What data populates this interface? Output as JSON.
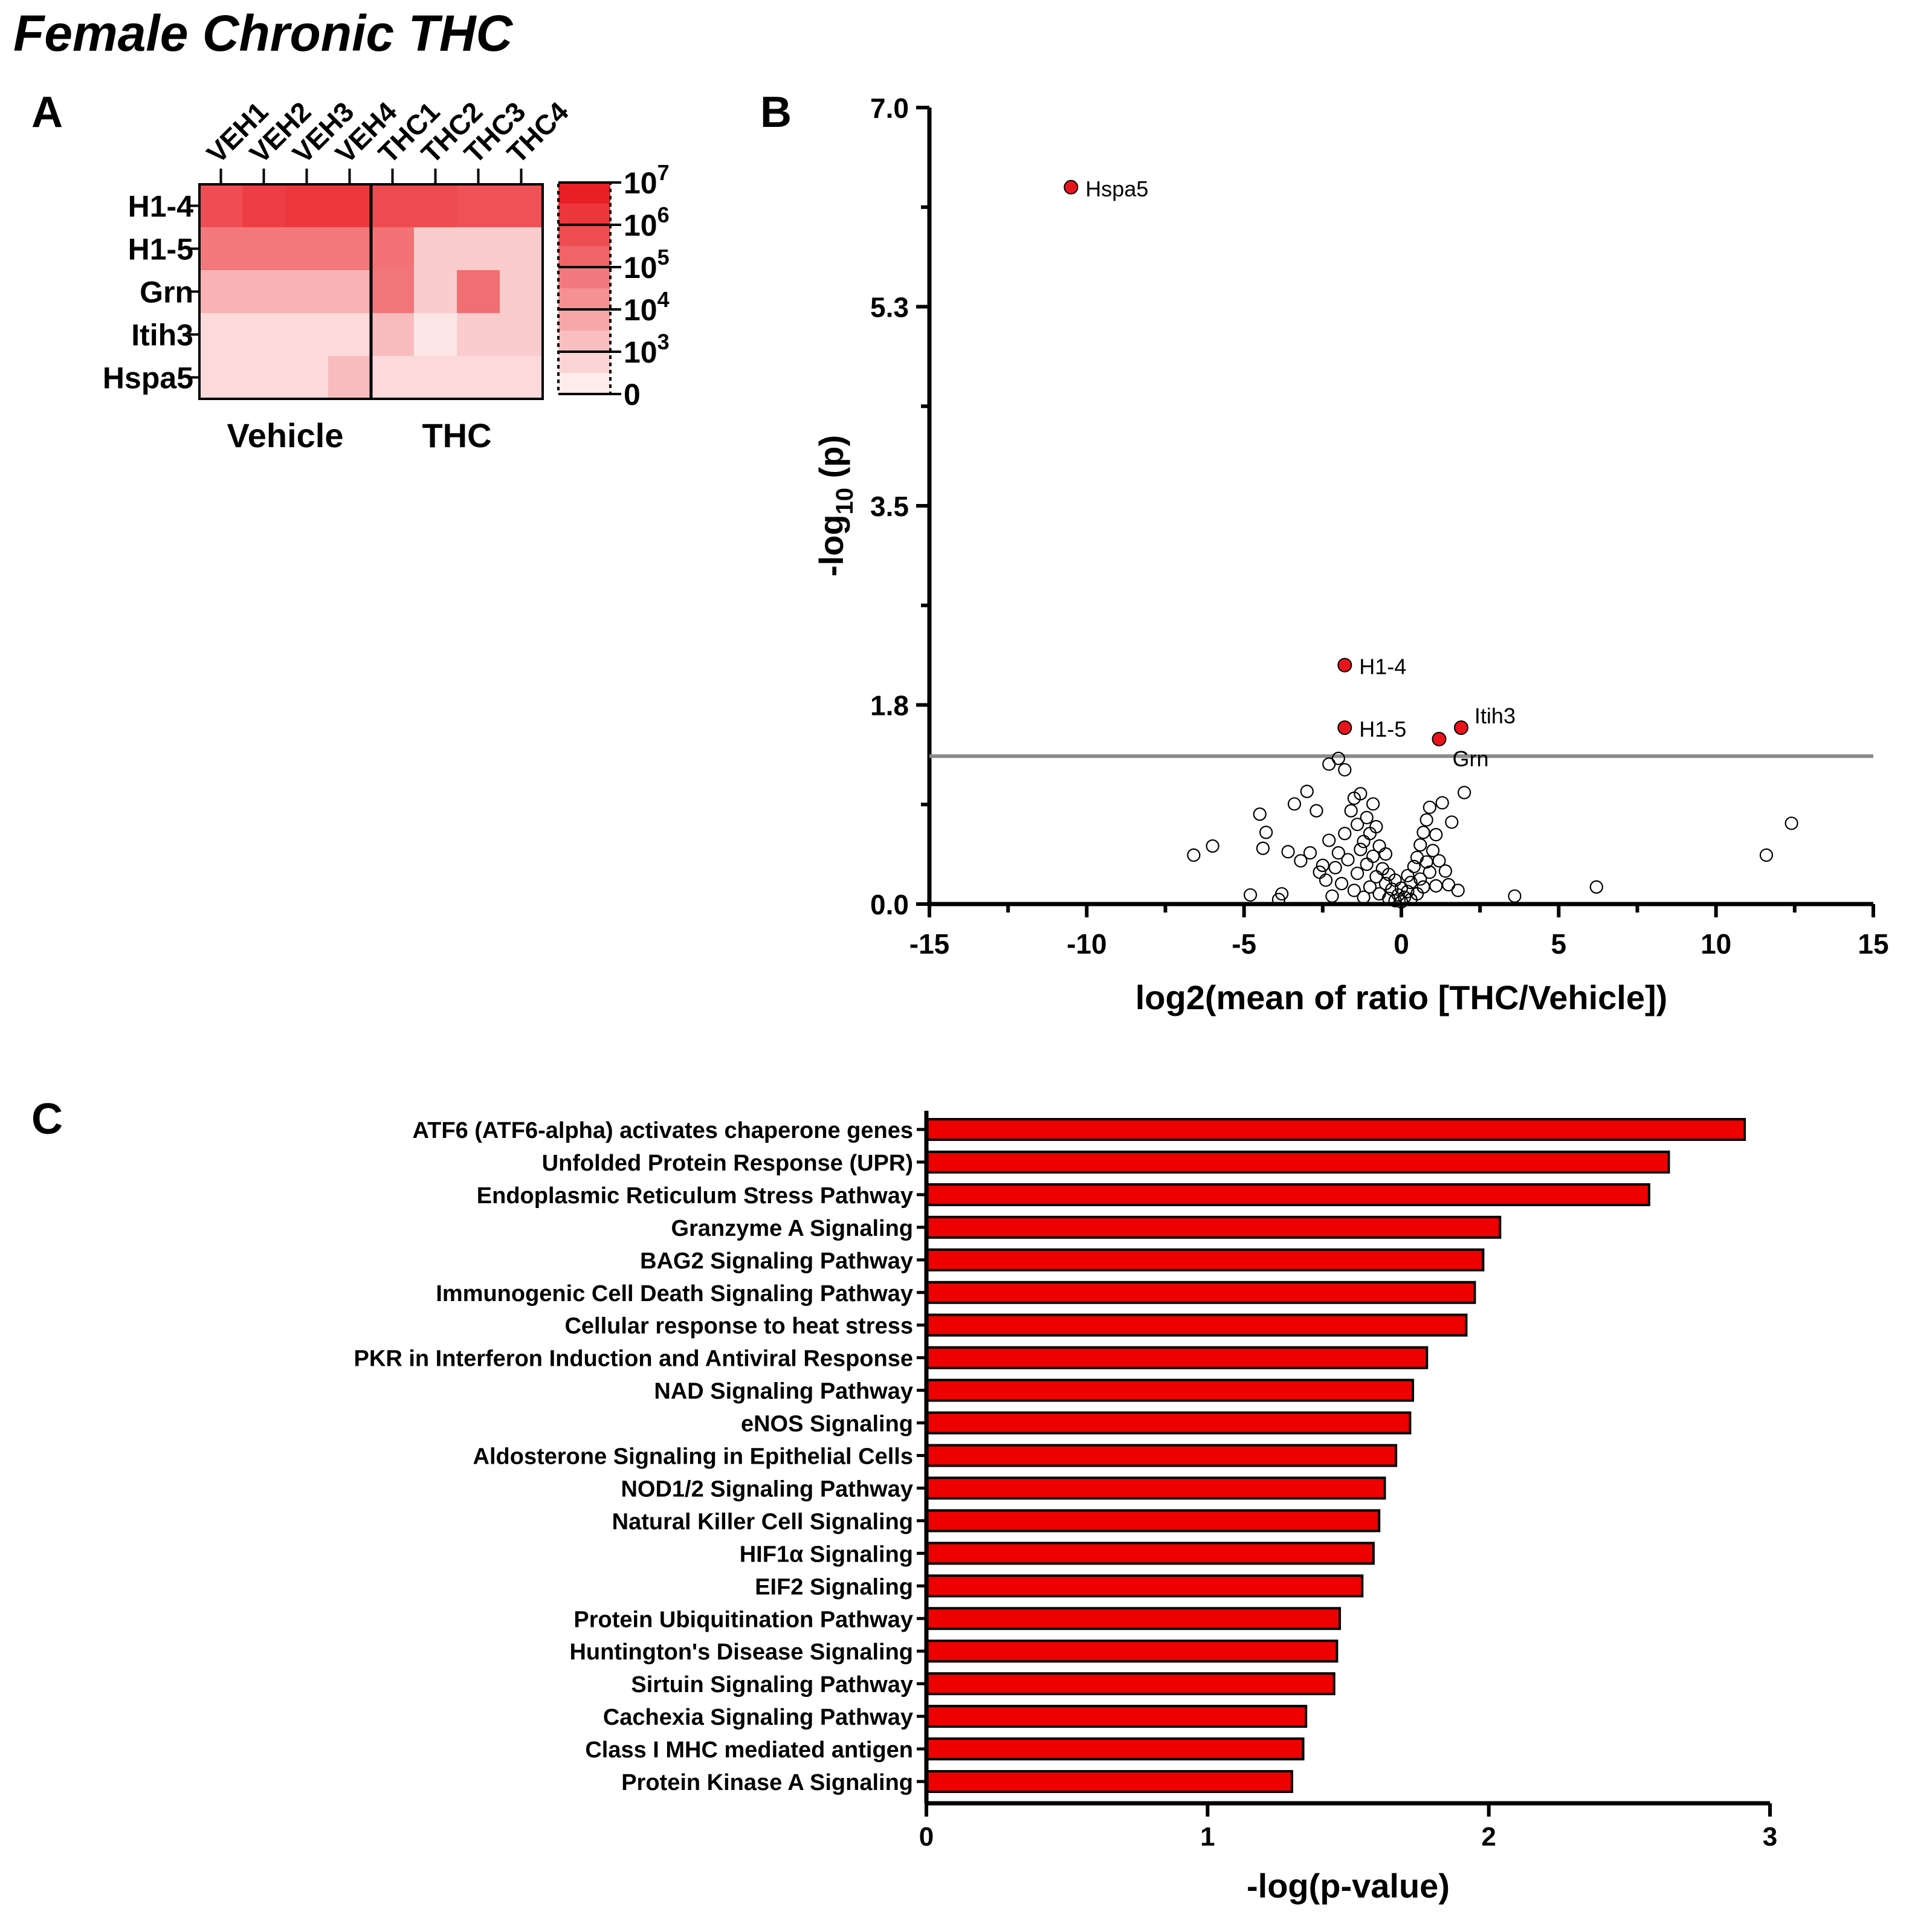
{
  "figure_title": "Female Chronic THC",
  "panel_labels": {
    "a": "A",
    "b": "B",
    "c": "C"
  },
  "colors": {
    "accent": "#e8141b",
    "bar": "#ee0000",
    "ref_line": "#8a8a8a",
    "axis": "#000000"
  },
  "chart_data": [
    {
      "type": "heatmap",
      "panel": "A",
      "columns": [
        "VEH1",
        "VEH2",
        "VEH3",
        "VEH4",
        "THC1",
        "THC2",
        "THC3",
        "THC4"
      ],
      "rows": [
        "H1-4",
        "H1-5",
        "Grn",
        "Itih3",
        "Hspa5"
      ],
      "groups": [
        {
          "label": "Vehicle",
          "columns": [
            "VEH1",
            "VEH2",
            "VEH3",
            "VEH4"
          ]
        },
        {
          "label": "THC",
          "columns": [
            "THC1",
            "THC2",
            "THC3",
            "THC4"
          ]
        }
      ],
      "scale_base": 10,
      "values_log10": [
        [
          5.2,
          5.7,
          5.9,
          5.9,
          5.3,
          5.3,
          5.1,
          5.1
        ],
        [
          3.9,
          3.9,
          3.9,
          3.9,
          4.1,
          1.3,
          1.3,
          1.3
        ],
        [
          2.1,
          2.1,
          2.1,
          2.1,
          4.0,
          1.3,
          4.2,
          1.3
        ],
        [
          0.9,
          0.9,
          0.9,
          0.9,
          1.8,
          0.5,
          1.3,
          1.3
        ],
        [
          0.9,
          0.9,
          0.9,
          1.8,
          0.9,
          0.9,
          0.9,
          0.9
        ]
      ],
      "colorbar": {
        "ticks": [
          {
            "base": "10",
            "exp": "7"
          },
          {
            "base": "10",
            "exp": "6"
          },
          {
            "base": "10",
            "exp": "5"
          },
          {
            "base": "10",
            "exp": "4"
          },
          {
            "base": "10",
            "exp": "3"
          },
          {
            "base": "0",
            "exp": ""
          }
        ],
        "range_log10": [
          0,
          7
        ]
      }
    },
    {
      "type": "scatter",
      "panel": "B",
      "title": "",
      "xlabel": "log2(mean of ratio [THC/Vehicle])",
      "ylabel_parts": {
        "pre": "-log",
        "sub": "10",
        "post": " (p)"
      },
      "xlim": [
        -15,
        15
      ],
      "ylim": [
        0,
        7
      ],
      "xticks": [
        -15,
        -10,
        -5,
        0,
        5,
        10,
        15
      ],
      "xtick_labels": [
        "-15",
        "-10",
        "-5",
        "0",
        "5",
        "10",
        "15"
      ],
      "yticks": [
        0,
        1.75,
        3.5,
        5.25,
        7
      ],
      "ytick_labels": [
        "0.0",
        "1.8",
        "3.5",
        "5.3",
        "7.0"
      ],
      "significance_threshold": 1.3,
      "highlighted": [
        {
          "gene": "Hspa5",
          "x": -10.5,
          "y": 6.3
        },
        {
          "gene": "H1-4",
          "x": -1.8,
          "y": 2.1
        },
        {
          "gene": "H1-5",
          "x": -1.8,
          "y": 1.55
        },
        {
          "gene": "Itih3",
          "x": 1.9,
          "y": 1.55
        },
        {
          "gene": "Grn",
          "x": 1.2,
          "y": 1.45
        }
      ],
      "points": [
        {
          "x": -6.6,
          "y": 0.43
        },
        {
          "x": -6.0,
          "y": 0.51
        },
        {
          "x": -4.8,
          "y": 0.08
        },
        {
          "x": -4.5,
          "y": 0.79
        },
        {
          "x": -4.4,
          "y": 0.49
        },
        {
          "x": -4.3,
          "y": 0.63
        },
        {
          "x": -3.9,
          "y": 0.04
        },
        {
          "x": -3.8,
          "y": 0.09
        },
        {
          "x": -3.6,
          "y": 0.46
        },
        {
          "x": -3.4,
          "y": 0.88
        },
        {
          "x": -3.2,
          "y": 0.38
        },
        {
          "x": -3.0,
          "y": 0.99
        },
        {
          "x": -2.9,
          "y": 0.45
        },
        {
          "x": -2.7,
          "y": 0.82
        },
        {
          "x": -2.6,
          "y": 0.28
        },
        {
          "x": -2.5,
          "y": 0.34
        },
        {
          "x": -2.4,
          "y": 0.21
        },
        {
          "x": -2.3,
          "y": 0.56
        },
        {
          "x": -2.3,
          "y": 1.23
        },
        {
          "x": -2.2,
          "y": 0.07
        },
        {
          "x": -2.1,
          "y": 0.32
        },
        {
          "x": -2.0,
          "y": 0.45
        },
        {
          "x": -2.0,
          "y": 1.28
        },
        {
          "x": -1.9,
          "y": 0.18
        },
        {
          "x": -1.8,
          "y": 0.62
        },
        {
          "x": -1.8,
          "y": 1.18
        },
        {
          "x": -1.7,
          "y": 0.39
        },
        {
          "x": -1.6,
          "y": 0.82
        },
        {
          "x": -1.5,
          "y": 0.12
        },
        {
          "x": -1.5,
          "y": 0.93
        },
        {
          "x": -1.4,
          "y": 0.27
        },
        {
          "x": -1.4,
          "y": 0.7
        },
        {
          "x": -1.3,
          "y": 0.48
        },
        {
          "x": -1.3,
          "y": 0.97
        },
        {
          "x": -1.2,
          "y": 0.06
        },
        {
          "x": -1.2,
          "y": 0.55
        },
        {
          "x": -1.1,
          "y": 0.35
        },
        {
          "x": -1.1,
          "y": 0.76
        },
        {
          "x": -1.0,
          "y": 0.15
        },
        {
          "x": -1.0,
          "y": 0.62
        },
        {
          "x": -0.9,
          "y": 0.42
        },
        {
          "x": -0.9,
          "y": 0.88
        },
        {
          "x": -0.8,
          "y": 0.24
        },
        {
          "x": -0.8,
          "y": 0.68
        },
        {
          "x": -0.7,
          "y": 0.09
        },
        {
          "x": -0.7,
          "y": 0.51
        },
        {
          "x": -0.6,
          "y": 0.31
        },
        {
          "x": -0.5,
          "y": 0.18
        },
        {
          "x": -0.5,
          "y": 0.44
        },
        {
          "x": -0.4,
          "y": 0.05
        },
        {
          "x": -0.4,
          "y": 0.26
        },
        {
          "x": -0.3,
          "y": 0.13
        },
        {
          "x": -0.2,
          "y": 0.03
        },
        {
          "x": -0.2,
          "y": 0.21
        },
        {
          "x": -0.1,
          "y": 0.08
        },
        {
          "x": 0.0,
          "y": 0.02
        },
        {
          "x": 0.0,
          "y": 0.14
        },
        {
          "x": 0.1,
          "y": 0.06
        },
        {
          "x": 0.2,
          "y": 0.11
        },
        {
          "x": 0.2,
          "y": 0.25
        },
        {
          "x": 0.3,
          "y": 0.04
        },
        {
          "x": 0.3,
          "y": 0.19
        },
        {
          "x": 0.4,
          "y": 0.33
        },
        {
          "x": 0.5,
          "y": 0.09
        },
        {
          "x": 0.5,
          "y": 0.41
        },
        {
          "x": 0.6,
          "y": 0.22
        },
        {
          "x": 0.6,
          "y": 0.52
        },
        {
          "x": 0.7,
          "y": 0.15
        },
        {
          "x": 0.7,
          "y": 0.63
        },
        {
          "x": 0.8,
          "y": 0.37
        },
        {
          "x": 0.8,
          "y": 0.74
        },
        {
          "x": 0.9,
          "y": 0.28
        },
        {
          "x": 0.9,
          "y": 0.85
        },
        {
          "x": 1.0,
          "y": 0.47
        },
        {
          "x": 1.1,
          "y": 0.16
        },
        {
          "x": 1.1,
          "y": 0.61
        },
        {
          "x": 1.2,
          "y": 0.38
        },
        {
          "x": 1.3,
          "y": 0.89
        },
        {
          "x": 1.4,
          "y": 0.29
        },
        {
          "x": 1.5,
          "y": 0.17
        },
        {
          "x": 1.6,
          "y": 0.72
        },
        {
          "x": 1.8,
          "y": 0.12
        },
        {
          "x": 2.0,
          "y": 0.98
        },
        {
          "x": 3.6,
          "y": 0.07
        },
        {
          "x": 6.2,
          "y": 0.15
        },
        {
          "x": 11.6,
          "y": 0.43
        },
        {
          "x": 12.4,
          "y": 0.71
        }
      ]
    },
    {
      "type": "bar",
      "panel": "C",
      "orientation": "horizontal",
      "xlabel": "-log(p-value)",
      "ylabel": "",
      "xlim": [
        0,
        3
      ],
      "xticks": [
        0,
        1,
        2,
        3
      ],
      "xtick_labels": [
        "0",
        "1",
        "2",
        "3"
      ],
      "categories": [
        "ATF6 (ATF6-alpha) activates chaperone genes",
        "Unfolded Protein Response (UPR)",
        "Endoplasmic Reticulum Stress Pathway",
        "Granzyme A Signaling",
        "BAG2 Signaling Pathway",
        "Immunogenic Cell Death Signaling Pathway",
        "Cellular response to heat stress",
        "PKR in Interferon Induction and Antiviral Response",
        "NAD Signaling Pathway",
        "eNOS Signaling",
        "Aldosterone Signaling in Epithelial Cells",
        "NOD1/2 Signaling Pathway",
        "Natural Killer Cell Signaling",
        "HIF1α Signaling",
        "EIF2 Signaling",
        "Protein Ubiquitination Pathway",
        "Huntington's Disease Signaling",
        "Sirtuin Signaling Pathway",
        "Cachexia Signaling Pathway",
        "Class I MHC mediated antigen",
        "Protein Kinase A Signaling"
      ],
      "values": [
        2.91,
        2.64,
        2.57,
        2.04,
        1.98,
        1.95,
        1.92,
        1.78,
        1.73,
        1.72,
        1.67,
        1.63,
        1.61,
        1.59,
        1.55,
        1.47,
        1.46,
        1.45,
        1.35,
        1.34,
        1.3
      ]
    }
  ]
}
